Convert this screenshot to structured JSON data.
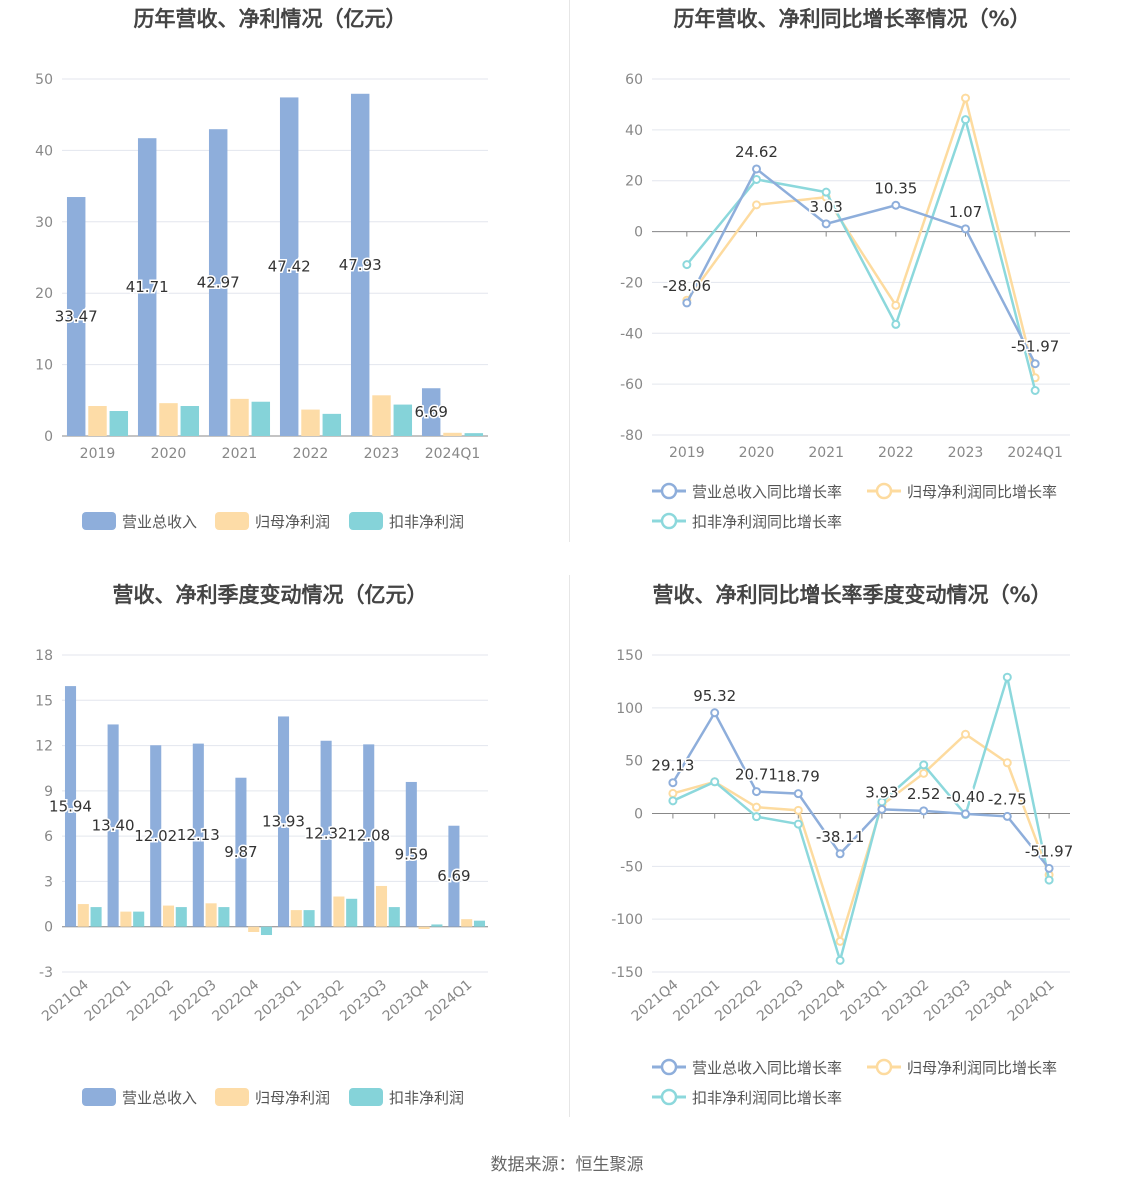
{
  "colors": {
    "revenue": "#8eaedb",
    "net_profit": "#fddca7",
    "deducted_profit": "#85d3d9",
    "revenue_line": "#8eaedb",
    "net_line": "#fddb9f",
    "deducted_line": "#8cd8dc"
  },
  "source": "数据来源：恒生聚源",
  "chart_data": [
    {
      "type": "bar",
      "title": "历年营收、净利情况（亿元）",
      "categories": [
        "2019",
        "2020",
        "2021",
        "2022",
        "2023",
        "2024Q1"
      ],
      "ylim": [
        0,
        50
      ],
      "yticks": [
        0,
        10,
        20,
        30,
        40,
        50
      ],
      "grid": true,
      "legend_position": "bottom",
      "series": [
        {
          "name": "营业总收入",
          "values": [
            33.47,
            41.71,
            42.97,
            47.42,
            47.93,
            6.69
          ],
          "labels": [
            "33.47",
            "41.71",
            "42.97",
            "47.42",
            "47.93",
            "6.69"
          ]
        },
        {
          "name": "归母净利润",
          "values": [
            4.2,
            4.6,
            5.2,
            3.7,
            5.7,
            0.45
          ]
        },
        {
          "name": "扣非净利润",
          "values": [
            3.5,
            4.2,
            4.8,
            3.1,
            4.4,
            0.4
          ]
        }
      ]
    },
    {
      "type": "line",
      "title": "历年营收、净利同比增长率情况（%）",
      "categories": [
        "2019",
        "2020",
        "2021",
        "2022",
        "2023",
        "2024Q1"
      ],
      "ylim": [
        -80,
        60
      ],
      "yticks": [
        -80,
        -60,
        -40,
        -20,
        0,
        20,
        40,
        60
      ],
      "grid": true,
      "legend_position": "bottom",
      "series": [
        {
          "name": "营业总收入同比增长率",
          "values": [
            -28.06,
            24.62,
            3.03,
            10.35,
            1.07,
            -51.97
          ],
          "labels": [
            "-28.06",
            "24.62",
            "3.03",
            "10.35",
            "1.07",
            "-51.97"
          ]
        },
        {
          "name": "归母净利润同比增长率",
          "values": [
            -27,
            10.5,
            13.5,
            -29,
            52.5,
            -57.5
          ]
        },
        {
          "name": "扣非净利润同比增长率",
          "values": [
            -13,
            20.5,
            15.5,
            -36.5,
            44,
            -62.5
          ]
        }
      ]
    },
    {
      "type": "bar",
      "title": "营收、净利季度变动情况（亿元）",
      "categories": [
        "2021Q4",
        "2022Q1",
        "2022Q2",
        "2022Q3",
        "2022Q4",
        "2023Q1",
        "2023Q2",
        "2023Q3",
        "2023Q4",
        "2024Q1"
      ],
      "ylim": [
        -3,
        18
      ],
      "yticks": [
        -3,
        0,
        3,
        6,
        9,
        12,
        15,
        18
      ],
      "grid": true,
      "legend_position": "bottom",
      "series": [
        {
          "name": "营业总收入",
          "values": [
            15.94,
            13.4,
            12.02,
            12.13,
            9.87,
            13.93,
            12.32,
            12.08,
            9.59,
            6.69
          ],
          "labels": [
            "15.94",
            "13.40",
            "12.02",
            "12.13",
            "9.87",
            "13.93",
            "12.32",
            "12.08",
            "9.59",
            "6.69"
          ]
        },
        {
          "name": "归母净利润",
          "values": [
            1.5,
            1.0,
            1.4,
            1.55,
            -0.35,
            1.1,
            2.0,
            2.7,
            -0.15,
            0.5
          ]
        },
        {
          "name": "扣非净利润",
          "values": [
            1.3,
            1.0,
            1.3,
            1.3,
            -0.55,
            1.1,
            1.85,
            1.3,
            0.15,
            0.4
          ]
        }
      ]
    },
    {
      "type": "line",
      "title": "营收、净利同比增长率季度变动情况（%）",
      "categories": [
        "2021Q4",
        "2022Q1",
        "2022Q2",
        "2022Q3",
        "2022Q4",
        "2023Q1",
        "2023Q2",
        "2023Q3",
        "2023Q4",
        "2024Q1"
      ],
      "ylim": [
        -150,
        150
      ],
      "yticks": [
        -150,
        -100,
        -50,
        0,
        50,
        100,
        150
      ],
      "grid": true,
      "legend_position": "bottom",
      "series": [
        {
          "name": "营业总收入同比增长率",
          "values": [
            29.13,
            95.32,
            20.71,
            18.79,
            -38.11,
            3.93,
            2.52,
            -0.4,
            -2.75,
            -51.97
          ],
          "labels": [
            "29.13",
            "95.32",
            "20.71",
            "18.79",
            "-38.11",
            "3.93",
            "2.52",
            "-0.40",
            "-2.75",
            "-51.97"
          ]
        },
        {
          "name": "归母净利润同比增长率",
          "values": [
            19,
            30,
            6,
            3,
            -121,
            8,
            38,
            75,
            48,
            -58
          ]
        },
        {
          "name": "扣非净利润同比增长率",
          "values": [
            12,
            30,
            -3,
            -10,
            -139,
            11,
            46,
            -1,
            129,
            -63
          ]
        }
      ]
    }
  ]
}
